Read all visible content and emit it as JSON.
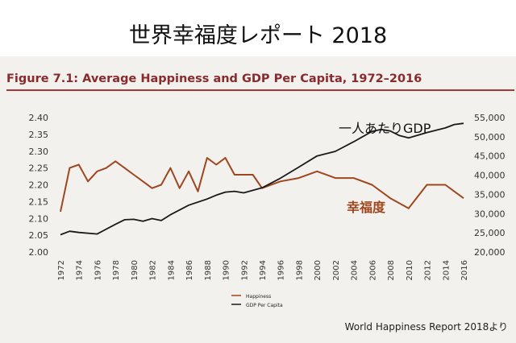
{
  "slide_title": "世界幸福度レポート 2018",
  "source_note": "World Happiness Report 2018より",
  "chart_data": {
    "type": "line",
    "title": "Figure 7.1: Average Happiness and GDP Per Capita, 1972–2016",
    "x": [
      1972,
      1973,
      1974,
      1975,
      1976,
      1977,
      1978,
      1979,
      1980,
      1981,
      1982,
      1983,
      1984,
      1985,
      1986,
      1987,
      1988,
      1989,
      1990,
      1991,
      1993,
      1994,
      1996,
      1998,
      2000,
      2002,
      2004,
      2006,
      2008,
      2010,
      2012,
      2014,
      2016
    ],
    "x_ticks": [
      "1972",
      "1974",
      "1976",
      "1978",
      "1980",
      "1982",
      "1984",
      "1986",
      "1988",
      "1990",
      "1992",
      "1994",
      "1996",
      "1998",
      "2000",
      "2002",
      "2004",
      "2006",
      "2008",
      "2010",
      "2012",
      "2014",
      "2016"
    ],
    "y_left": {
      "lim": [
        2.0,
        2.4
      ],
      "ticks": [
        "2.00",
        "2.05",
        "2.10",
        "2.15",
        "2.20",
        "2.25",
        "2.30",
        "2.35",
        "2.40"
      ]
    },
    "y_right": {
      "lim": [
        20000,
        55000
      ],
      "ticks": [
        "20,000",
        "25,000",
        "30,000",
        "35,000",
        "40,000",
        "45,000",
        "50,000",
        "55,000"
      ]
    },
    "series": [
      {
        "name": "Happiness",
        "axis": "left",
        "color": "#a0461f",
        "annotation": "幸福度",
        "x": [
          1972,
          1973,
          1974,
          1975,
          1976,
          1977,
          1978,
          1979,
          1980,
          1981,
          1982,
          1983,
          1984,
          1985,
          1986,
          1987,
          1988,
          1989,
          1990,
          1991,
          1993,
          1994,
          1996,
          1998,
          2000,
          2002,
          2004,
          2006,
          2008,
          2010,
          2012,
          2014,
          2016
        ],
        "values": [
          2.12,
          2.25,
          2.26,
          2.21,
          2.24,
          2.25,
          2.27,
          2.25,
          2.23,
          2.21,
          2.19,
          2.2,
          2.25,
          2.19,
          2.24,
          2.18,
          2.28,
          2.26,
          2.28,
          2.23,
          2.23,
          2.19,
          2.21,
          2.22,
          2.24,
          2.22,
          2.22,
          2.2,
          2.16,
          2.13,
          2.2,
          2.2,
          2.16
        ]
      },
      {
        "name": "GDP Per Capita",
        "axis": "right",
        "color": "#1a1a1a",
        "annotation": "一人あたりGDP",
        "x": [
          1972,
          1973,
          1974,
          1976,
          1978,
          1979,
          1980,
          1981,
          1982,
          1983,
          1984,
          1986,
          1988,
          1989,
          1990,
          1991,
          1992,
          1994,
          1996,
          1998,
          2000,
          2002,
          2004,
          2006,
          2007,
          2008,
          2009,
          2010,
          2012,
          2014,
          2015,
          2016
        ],
        "values": [
          24500,
          25400,
          25100,
          24700,
          27200,
          28400,
          28500,
          28000,
          28700,
          28200,
          29700,
          32200,
          33800,
          34800,
          35600,
          35800,
          35400,
          36700,
          39200,
          42100,
          45000,
          46200,
          48700,
          51400,
          51900,
          51500,
          50300,
          49700,
          51100,
          52300,
          53200,
          53500
        ]
      }
    ],
    "legend": {
      "placement": "bottom-left",
      "entries": [
        "Happiness",
        "GDP Per Capita"
      ]
    }
  }
}
